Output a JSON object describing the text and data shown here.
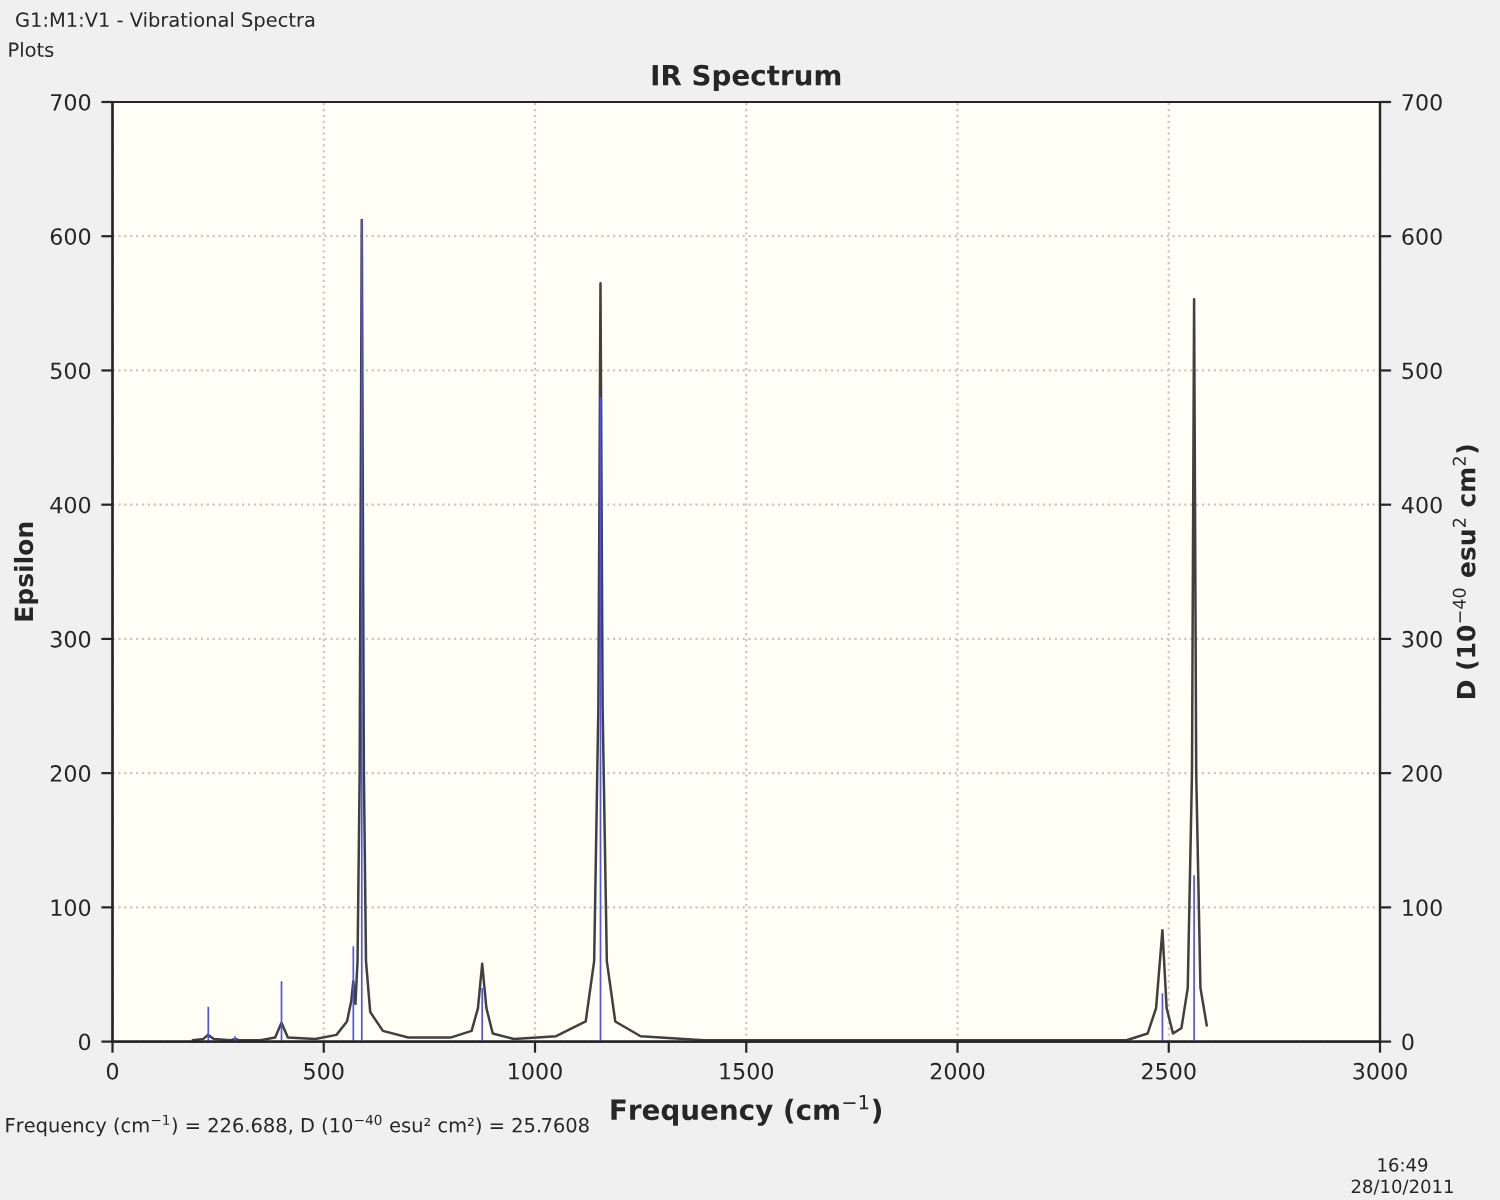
{
  "chart_data": {
    "type": "line",
    "title": "IR Spectrum",
    "xlabel": "Frequency (cm$^{−1}$)",
    "ylabel": "Epsilon",
    "y2label": "D (10$^{−40}$ esu$^{2}$ cm$^{2}$)",
    "xlim": [
      0,
      3000
    ],
    "xticks": [
      0,
      500,
      1000,
      1500,
      2000,
      2500,
      3000
    ],
    "ylim": [
      0,
      700
    ],
    "yticks": [
      0,
      100,
      200,
      300,
      400,
      500,
      600,
      700
    ],
    "y2lim": [
      0,
      700
    ],
    "y2ticks": [
      0,
      100,
      200,
      300,
      400,
      500,
      600,
      700
    ],
    "grid": true,
    "line_style": "solid",
    "marker": "none",
    "series": [
      {
        "color": "#404040",
        "x": [
          190,
          215,
          226,
          240,
          280,
          290,
          300,
          350,
          385,
          400,
          415,
          480,
          530,
          555,
          565,
          570,
          575,
          580,
          585,
          590,
          595,
          600,
          610,
          640,
          700,
          800,
          850,
          865,
          875,
          885,
          900,
          950,
          1050,
          1120,
          1140,
          1150,
          1155,
          1160,
          1170,
          1190,
          1250,
          1400,
          1900,
          2400,
          2450,
          2470,
          2485,
          2495,
          2510,
          2530,
          2545,
          2555,
          2560,
          2565,
          2575,
          2590
        ],
        "values": [
          1,
          2,
          5,
          2,
          1,
          2,
          1,
          1,
          3,
          14,
          3,
          2,
          5,
          15,
          30,
          45,
          28,
          60,
          200,
          612,
          200,
          60,
          22,
          8,
          3,
          3,
          8,
          25,
          58,
          25,
          6,
          2,
          4,
          15,
          60,
          250,
          565,
          250,
          60,
          15,
          4,
          1,
          1,
          1,
          6,
          25,
          83,
          25,
          6,
          10,
          40,
          200,
          553,
          200,
          40,
          12
        ]
      },
      {
        "type": "bar",
        "axis": "y2",
        "color": "#5050ff",
        "x": [
          226.688,
          290,
          400,
          570,
          590,
          875,
          1155,
          2485,
          2560
        ],
        "values": [
          26,
          4,
          45,
          71,
          612,
          40,
          480,
          36,
          124
        ]
      }
    ],
    "annotations": [
      "Frequency (cm$^{−1}$) = 226.688, D (10$^{−40}$ esu² cm²) = 25.7608",
      "G1:M1:V1 - Vibrational Spectra",
      "Plots",
      "16:49",
      "28/10/2011"
    ]
  }
}
